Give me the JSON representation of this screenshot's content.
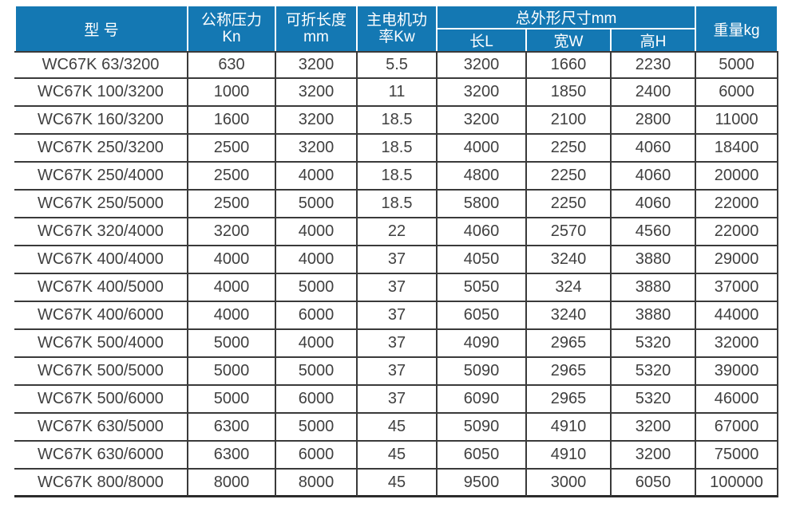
{
  "title": "WC67K press brake specification table",
  "colors": {
    "header_bg": "#1478b3",
    "header_text": "#ffffff",
    "body_text": "#404040",
    "body_border": "#3a3a3a"
  },
  "header": {
    "model": "型 号",
    "pressure_line1": "公称压力",
    "pressure_line2": "Kn",
    "length_line1": "可折长度",
    "length_line2": "mm",
    "motor_line1": "主电机功",
    "motor_line2": "率Kw",
    "dims_group": "总外形尺寸mm",
    "dim_l": "长L",
    "dim_w": "宽W",
    "dim_h": "高H",
    "weight": "重量kg"
  },
  "table": {
    "columns": [
      "型 号",
      "公称压力 Kn",
      "可折长度 mm",
      "主电机功率Kw",
      "长L",
      "宽W",
      "高H",
      "重量kg"
    ],
    "rows": [
      [
        "WC67K 63/3200",
        "630",
        "3200",
        "5.5",
        "3200",
        "1660",
        "2230",
        "5000"
      ],
      [
        "WC67K 100/3200",
        "1000",
        "3200",
        "11",
        "3200",
        "1850",
        "2400",
        "6000"
      ],
      [
        "WC67K 160/3200",
        "1600",
        "3200",
        "18.5",
        "3200",
        "2100",
        "2800",
        "11000"
      ],
      [
        "WC67K 250/3200",
        "2500",
        "3200",
        "18.5",
        "4000",
        "2250",
        "4060",
        "18400"
      ],
      [
        "WC67K 250/4000",
        "2500",
        "4000",
        "18.5",
        "4800",
        "2250",
        "4060",
        "20000"
      ],
      [
        "WC67K 250/5000",
        "2500",
        "5000",
        "18.5",
        "5800",
        "2250",
        "4060",
        "22000"
      ],
      [
        "WC67K 320/4000",
        "3200",
        "4000",
        "22",
        "4060",
        "2570",
        "4560",
        "22000"
      ],
      [
        "WC67K 400/4000",
        "4000",
        "4000",
        "37",
        "4050",
        "3240",
        "3880",
        "29000"
      ],
      [
        "WC67K 400/5000",
        "4000",
        "5000",
        "37",
        "5050",
        "324",
        "3880",
        "37000"
      ],
      [
        "WC67K 400/6000",
        "4000",
        "6000",
        "37",
        "6050",
        "3240",
        "3880",
        "44000"
      ],
      [
        "WC67K 500/4000",
        "5000",
        "4000",
        "37",
        "4090",
        "2965",
        "5320",
        "32000"
      ],
      [
        "WC67K 500/5000",
        "5000",
        "5000",
        "37",
        "5090",
        "2965",
        "5320",
        "39000"
      ],
      [
        "WC67K 500/6000",
        "5000",
        "6000",
        "37",
        "6090",
        "2965",
        "5320",
        "46000"
      ],
      [
        "WC67K 630/5000",
        "6300",
        "5000",
        "45",
        "5090",
        "4910",
        "3200",
        "67000"
      ],
      [
        "WC67K 630/6000",
        "6300",
        "6000",
        "45",
        "6050",
        "4910",
        "3200",
        "75000"
      ],
      [
        "WC67K 800/8000",
        "8000",
        "8000",
        "45",
        "9500",
        "3000",
        "6050",
        "100000"
      ]
    ]
  }
}
